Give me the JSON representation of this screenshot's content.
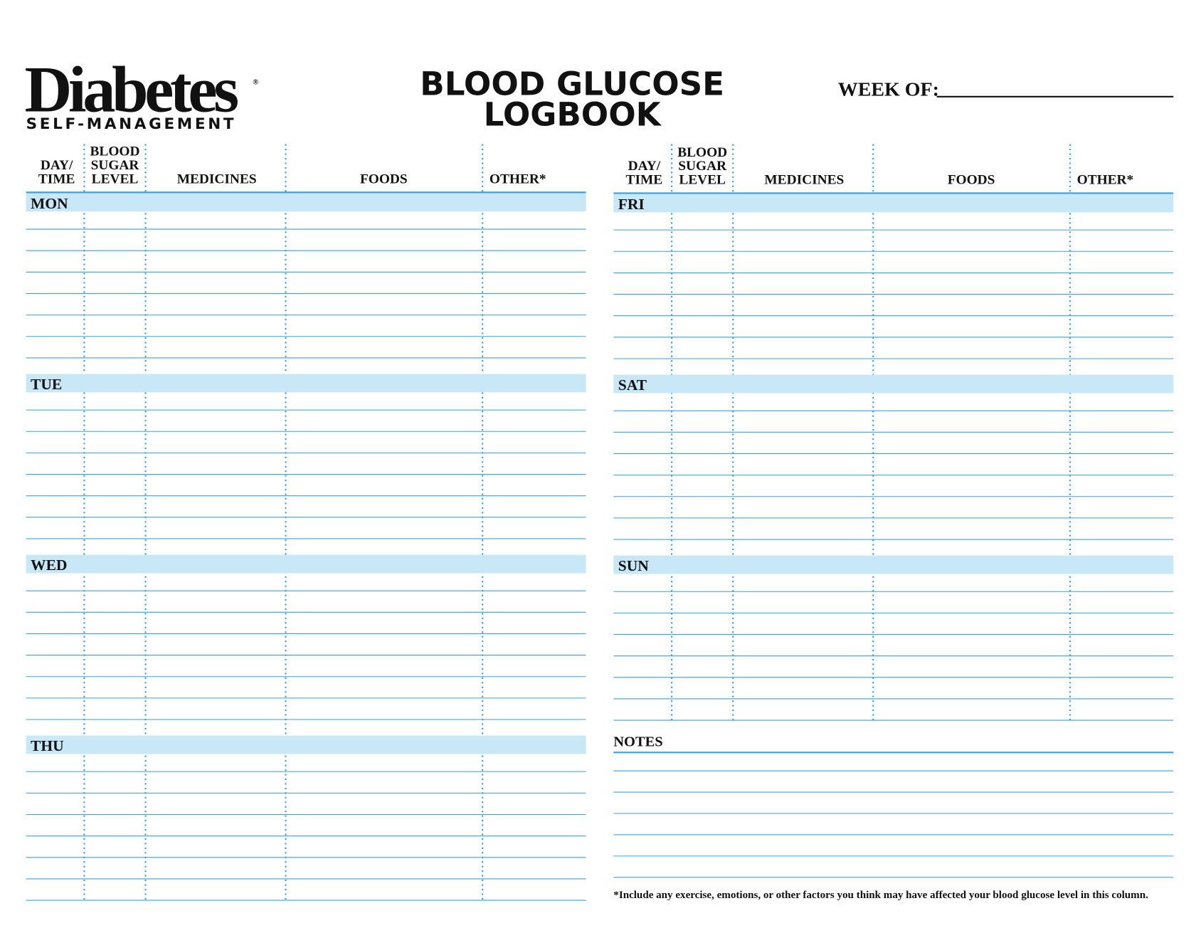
{
  "header": {
    "brand": "Diabetes",
    "registered": "®",
    "tagline": "SELF-MANAGEMENT",
    "title": [
      "BLOOD GLUCOSE",
      "LOGBOOK"
    ],
    "week_label": "WEEK OF:"
  },
  "columns": [
    [
      "DAY/",
      "TIME"
    ],
    [
      "BLOOD",
      "SUGAR",
      "LEVEL"
    ],
    [
      "MEDICINES"
    ],
    [
      "FOODS"
    ],
    [
      "OTHER*"
    ]
  ],
  "days": [
    "MON",
    "TUE",
    "WED",
    "THU",
    "FRI",
    "SAT",
    "SUN"
  ],
  "notes": {
    "label": "NOTES"
  },
  "footnote": "*Include any exercise, emotions, or other factors you think may have affected your blood glucose level in this column."
}
